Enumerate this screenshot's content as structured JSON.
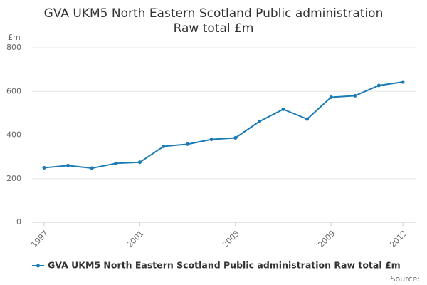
{
  "chart_data": {
    "type": "line",
    "title": [
      "GVA UKM5 North Eastern Scotland Public administration",
      "Raw total £m"
    ],
    "y_axis_label": "£m",
    "x": [
      1997,
      1998,
      1999,
      2000,
      2001,
      2002,
      2003,
      2004,
      2005,
      2006,
      2007,
      2008,
      2009,
      2010,
      2011,
      2012
    ],
    "series": [
      {
        "name": "GVA UKM5 North Eastern Scotland Public administration Raw total £m",
        "color": "#1a7ab8",
        "values": [
          250,
          260,
          248,
          270,
          275,
          348,
          358,
          380,
          387,
          462,
          518,
          473,
          573,
          580,
          627,
          643
        ]
      }
    ],
    "xlim": [
      1997,
      2012
    ],
    "xticks": [
      1997,
      2001,
      2005,
      2009,
      2012
    ],
    "ylim": [
      0,
      800
    ],
    "yticks": [
      0,
      200,
      400,
      600,
      800
    ],
    "grid": true,
    "legend": "bottom",
    "source": "Source:"
  }
}
